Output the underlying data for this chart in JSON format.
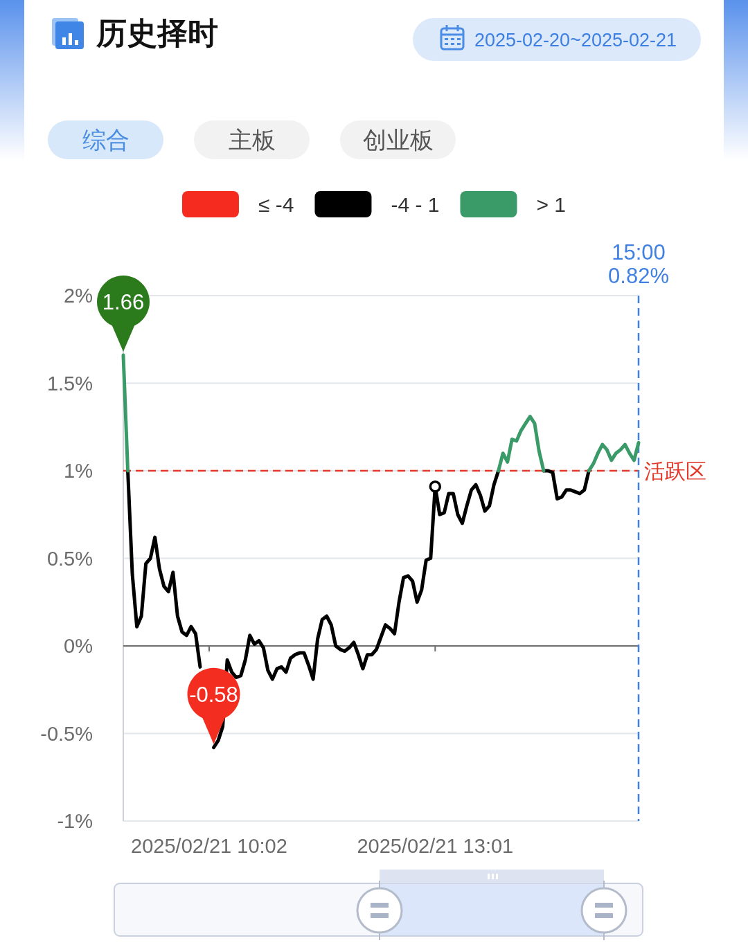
{
  "chart_data": {
    "type": "line",
    "title": "历史择时",
    "subtitle": "2025-02-20~2025-02-21",
    "annotations": [
      "综合",
      "主板",
      "创业板",
      {
        "text": "1.66",
        "y": 1.66
      },
      {
        "text": "-0.58",
        "y": -0.58
      }
    ],
    "categories": [
      null,
      null,
      null,
      null,
      null,
      null,
      null,
      null,
      null,
      null,
      null,
      null,
      null,
      null,
      null,
      null,
      null,
      null,
      null,
      "2025/02/21 10:02",
      null,
      null,
      null,
      null,
      null,
      null,
      null,
      null,
      null,
      null,
      null,
      null,
      null,
      null,
      null,
      null,
      null,
      null,
      null,
      null,
      null,
      null,
      null,
      null,
      null,
      null,
      null,
      null,
      null,
      null,
      null,
      null,
      null,
      null,
      null,
      null,
      null,
      null,
      null,
      null,
      null,
      null,
      null,
      null,
      null,
      null,
      null,
      null,
      null,
      "2025/02/21 13:01",
      null,
      null,
      null,
      null,
      null,
      null,
      null,
      null,
      null,
      null,
      null,
      null,
      null,
      null,
      null,
      null,
      null,
      null,
      null,
      null,
      null,
      null,
      null,
      null,
      null,
      null,
      null,
      null,
      null,
      null,
      null,
      null,
      null,
      null,
      null,
      null,
      null,
      null,
      null,
      null,
      null,
      null,
      null,
      null,
      null
    ],
    "series": [
      {
        "name": "≤ -4",
        "color": "#f62b1f",
        "values": [
          null,
          null,
          null,
          null,
          null,
          null,
          null,
          null,
          null,
          null,
          null,
          null,
          null,
          null,
          null,
          null,
          null,
          null,
          null,
          null,
          null,
          null,
          null,
          null,
          null,
          null,
          null,
          null,
          null,
          null,
          null,
          null,
          null,
          null,
          null,
          null,
          null,
          null,
          null,
          null,
          null,
          null,
          null,
          null,
          null,
          null,
          null,
          null,
          null,
          null,
          null,
          null,
          null,
          null,
          null,
          null,
          null,
          null,
          null,
          null,
          null,
          null,
          null,
          null,
          null,
          null,
          null,
          null,
          null,
          null,
          null,
          null,
          null,
          null,
          null,
          null,
          null,
          null,
          null,
          null,
          null,
          null,
          null,
          null,
          null,
          null,
          null,
          null,
          null,
          null,
          null,
          null,
          null,
          null,
          null,
          null,
          null,
          null,
          null,
          null,
          null,
          null,
          null,
          null,
          null,
          null,
          null,
          null,
          null,
          null,
          null,
          null,
          null,
          null,
          null
        ]
      },
      {
        "name": "-4 - 1",
        "color": "#000000",
        "values": [
          null,
          1.0,
          0.41,
          0.11,
          0.17,
          0.47,
          0.5,
          0.62,
          0.44,
          0.34,
          0.31,
          0.42,
          0.17,
          0.08,
          0.06,
          0.11,
          0.07,
          -0.12,
          null,
          null,
          -0.58,
          -0.54,
          -0.46,
          -0.08,
          -0.15,
          -0.18,
          -0.17,
          -0.08,
          0.06,
          0.01,
          0.03,
          -0.01,
          -0.14,
          -0.19,
          -0.13,
          -0.12,
          -0.15,
          -0.07,
          -0.05,
          -0.04,
          -0.04,
          -0.11,
          -0.19,
          0.04,
          0.15,
          0.17,
          0.12,
          0.0,
          -0.02,
          -0.03,
          -0.01,
          0.02,
          -0.05,
          -0.13,
          -0.05,
          -0.05,
          -0.02,
          0.05,
          0.12,
          0.1,
          0.07,
          0.25,
          0.39,
          0.4,
          0.37,
          0.25,
          0.32,
          0.49,
          0.5,
          0.91,
          0.75,
          0.76,
          0.87,
          0.87,
          0.75,
          0.7,
          0.8,
          0.89,
          0.92,
          0.86,
          0.77,
          0.8,
          0.92,
          1.0,
          null,
          null,
          null,
          null,
          null,
          null,
          null,
          null,
          null,
          1.0,
          1.0,
          0.99,
          0.84,
          0.85,
          0.89,
          0.89,
          0.88,
          0.87,
          0.89,
          1.0,
          null,
          null,
          null,
          null,
          null,
          null,
          null,
          null,
          null,
          null,
          null
        ]
      },
      {
        "name": "> 1",
        "color": "#3a9a68",
        "values": [
          1.66,
          1.0,
          null,
          null,
          null,
          null,
          null,
          null,
          null,
          null,
          null,
          null,
          null,
          null,
          null,
          null,
          null,
          null,
          null,
          null,
          null,
          null,
          null,
          null,
          null,
          null,
          null,
          null,
          null,
          null,
          null,
          null,
          null,
          null,
          null,
          null,
          null,
          null,
          null,
          null,
          null,
          null,
          null,
          null,
          null,
          null,
          null,
          null,
          null,
          null,
          null,
          null,
          null,
          null,
          null,
          null,
          null,
          null,
          null,
          null,
          null,
          null,
          null,
          null,
          null,
          null,
          null,
          null,
          null,
          null,
          null,
          null,
          null,
          null,
          null,
          null,
          null,
          null,
          null,
          null,
          null,
          null,
          null,
          1.0,
          1.1,
          1.05,
          1.18,
          1.17,
          1.23,
          1.27,
          1.31,
          1.27,
          1.11,
          1.0,
          null,
          null,
          null,
          null,
          null,
          null,
          null,
          null,
          null,
          1.0,
          1.04,
          1.1,
          1.15,
          1.12,
          1.06,
          1.1,
          1.12,
          1.15,
          1.1,
          1.06,
          1.16
        ]
      },
      {
        "type": "scatter",
        "x": [
          "2025/02/21 13:01"
        ],
        "values": [
          0.91
        ],
        "color": "#000000",
        "marker": "circle"
      }
    ],
    "ylim": [
      -1,
      2
    ],
    "yticks": [
      {
        "value": -1,
        "label": "-1%"
      },
      {
        "value": -0.5,
        "label": "-0.5%"
      },
      {
        "value": 0,
        "label": "0%"
      },
      {
        "value": 0.5,
        "label": "0.5%"
      },
      {
        "value": 1,
        "label": "1%"
      },
      {
        "value": 1.5,
        "label": "1.5%"
      },
      {
        "value": 2,
        "label": "2%"
      }
    ],
    "ref_lines": [
      {
        "axis": "y",
        "value": 1,
        "label": "活跃区",
        "color": "#e2392b",
        "line_style": "dashed"
      },
      {
        "axis": "x",
        "value": "15:00",
        "label": "0.82%",
        "color": "#3f80e2",
        "line_style": "dashed"
      }
    ],
    "grid": "y",
    "legend": "top"
  }
}
